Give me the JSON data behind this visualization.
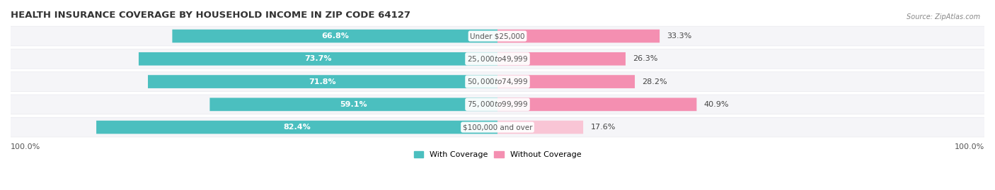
{
  "title": "HEALTH INSURANCE COVERAGE BY HOUSEHOLD INCOME IN ZIP CODE 64127",
  "source": "Source: ZipAtlas.com",
  "categories": [
    "Under $25,000",
    "$25,000 to $49,999",
    "$50,000 to $74,999",
    "$75,000 to $99,999",
    "$100,000 and over"
  ],
  "with_coverage": [
    66.8,
    73.7,
    71.8,
    59.1,
    82.4
  ],
  "without_coverage": [
    33.3,
    26.3,
    28.2,
    40.9,
    17.6
  ],
  "color_with": "#4bbfbf",
  "color_without": "#f48fb1",
  "color_without_last": "#f9c5d5",
  "row_bg_color": "#e8e8ee",
  "row_inner_color": "#f5f5f8",
  "label_color_with": "#ffffff",
  "label_color_without": "#555555",
  "bar_height": 0.58,
  "figsize": [
    14.06,
    2.69
  ],
  "dpi": 100,
  "title_fontsize": 9.5,
  "bar_label_fontsize": 8,
  "cat_label_fontsize": 7.5,
  "legend_fontsize": 8,
  "axis_label_fontsize": 8
}
